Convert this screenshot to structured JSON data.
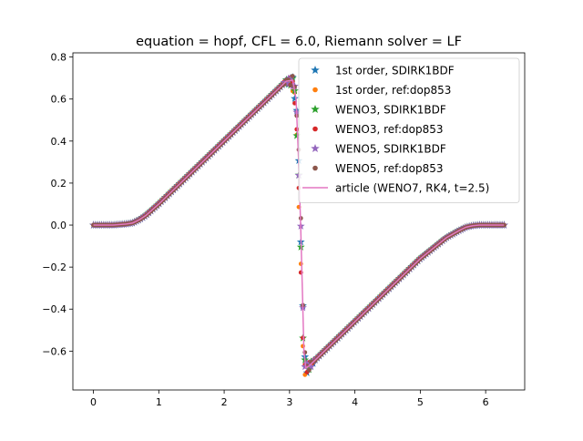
{
  "chart_data": {
    "type": "line",
    "title": "equation = hopf, CFL = 6.0, Riemann solver = LF",
    "xlabel": "",
    "ylabel": "",
    "xlim": [
      -0.3142,
      6.5973
    ],
    "ylim": [
      -0.785,
      0.82
    ],
    "grid": false,
    "legend_position": "top-right",
    "x_ticks": [
      0,
      1,
      2,
      3,
      4,
      5,
      6
    ],
    "y_ticks": [
      -0.6,
      -0.4,
      -0.2,
      0.0,
      0.2,
      0.4,
      0.6,
      0.8
    ],
    "x_tick_labels": [
      "0",
      "1",
      "2",
      "3",
      "4",
      "5",
      "6"
    ],
    "y_tick_labels": [
      "−0.6",
      "−0.4",
      "−0.2",
      "0.0",
      "0.2",
      "0.4",
      "0.6",
      "0.8"
    ],
    "series": [
      {
        "name": "1st order, SDIRK1BDF",
        "marker": "star",
        "color": "#1f77b4",
        "shape_offset": 0.0
      },
      {
        "name": "1st order, ref:dop853",
        "marker": "dot",
        "color": "#ff7f0e",
        "shape_offset": 0.04
      },
      {
        "name": "WENO3, SDIRK1BDF",
        "marker": "star",
        "color": "#2ca02c",
        "shape_offset": 0.02
      },
      {
        "name": "WENO3, ref:dop853",
        "marker": "dot",
        "color": "#d62728",
        "shape_offset": 0.03
      },
      {
        "name": "WENO5, SDIRK1BDF",
        "marker": "star",
        "color": "#9467bd",
        "shape_offset": 0.0
      },
      {
        "name": "WENO5, ref:dop853",
        "marker": "dot",
        "color": "#8c564b",
        "shape_offset": -0.01
      },
      {
        "name": "article (WENO7, RK4, t=2.5)",
        "marker": "line",
        "color": "#e377c2",
        "shape_offset": 0.0
      }
    ],
    "reference_curve": {
      "x": [
        0.0,
        0.3,
        0.5,
        0.6,
        0.7,
        0.8,
        1.0,
        1.3,
        1.6,
        2.0,
        2.4,
        2.8,
        2.95,
        3.05,
        3.1,
        3.14,
        3.17,
        3.2,
        3.22,
        3.25,
        3.3,
        3.6,
        4.0,
        4.5,
        5.0,
        5.4,
        5.6,
        5.7,
        5.8,
        5.9,
        6.28
      ],
      "y": [
        0.0,
        0.0,
        0.005,
        0.01,
        0.025,
        0.045,
        0.1,
        0.19,
        0.28,
        0.4,
        0.52,
        0.64,
        0.685,
        0.69,
        0.6,
        0.3,
        0.0,
        -0.35,
        -0.6,
        -0.68,
        -0.67,
        -0.58,
        -0.46,
        -0.31,
        -0.16,
        -0.06,
        -0.025,
        -0.01,
        -0.003,
        0.0,
        0.0
      ]
    }
  }
}
